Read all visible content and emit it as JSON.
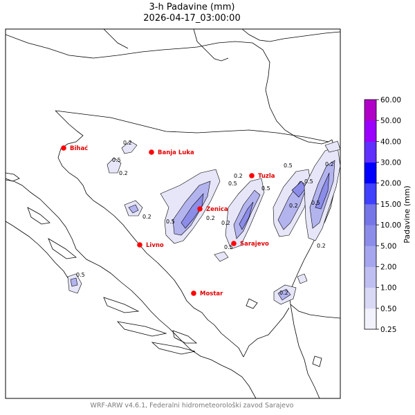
{
  "title": "3-h Padavine (mm)",
  "datetime": "2026-04-17_03:00:00",
  "footer": "WRF-ARW v4.6.1, Federalni hidrometeorološki zavod Sarajevo",
  "colorbar": {
    "label": "Padavine (mm)",
    "levels": [
      "0.25",
      "0.50",
      "1.00",
      "2.00",
      "5.00",
      "10.00",
      "15.00",
      "20.00",
      "30.00",
      "40.00",
      "50.00",
      "60.00"
    ],
    "colors": [
      "#f2f2fc",
      "#d9d9f6",
      "#bfbff2",
      "#a6a6ee",
      "#8c8ce9",
      "#7676e8",
      "#4040ff",
      "#0000ff",
      "#6030ff",
      "#9b00ff",
      "#b000c8"
    ]
  },
  "cities": [
    {
      "name": "Bihać"
    },
    {
      "name": "Banja Luka"
    },
    {
      "name": "Tuzla"
    },
    {
      "name": "Zenica"
    },
    {
      "name": "Livno"
    },
    {
      "name": "Sarajevo"
    },
    {
      "name": "Mostar"
    }
  ],
  "contour_labels": [
    "0.5",
    "0.2",
    "0.2",
    "0.5",
    "0.2",
    "0.2",
    "0.5",
    "0.5",
    "0.2",
    "0.5",
    "0.2",
    "0.5",
    "0.2",
    "0.5",
    "0.2",
    "0.5",
    "0.2",
    "0.2",
    "0.5"
  ],
  "colors": {
    "city": "#ff0000",
    "city_label": "#e00000"
  }
}
